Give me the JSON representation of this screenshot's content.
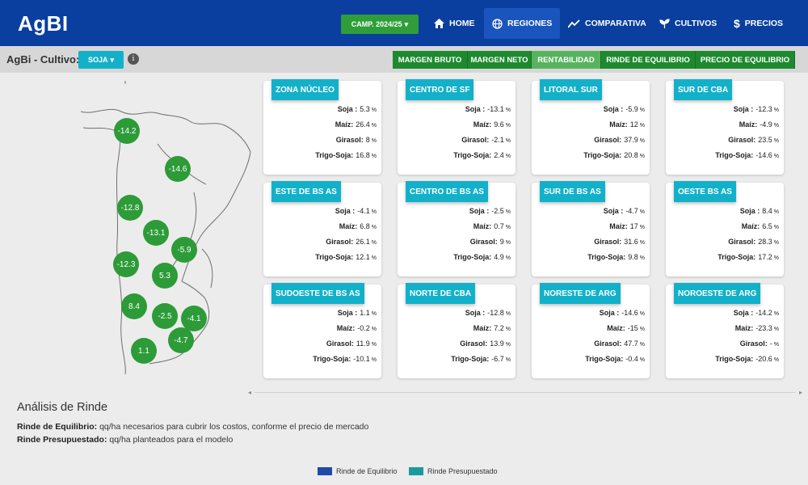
{
  "app": {
    "logo": "AgBI"
  },
  "campaign": {
    "label": "CAMP. 2024/25"
  },
  "nav": [
    {
      "label": "HOME",
      "icon": "home-icon"
    },
    {
      "label": "REGIONES",
      "icon": "globe-icon",
      "active": true
    },
    {
      "label": "COMPARATIVA",
      "icon": "chart-line-icon"
    },
    {
      "label": "CULTIVOS",
      "icon": "sprout-icon"
    },
    {
      "label": "PRECIOS",
      "icon": "dollar-icon"
    }
  ],
  "page": {
    "label": "AgBi - Cultivo:",
    "crop_selected": "SOJA",
    "info_symbol": "i"
  },
  "metric_tabs": [
    {
      "label": "MARGEN BRUTO"
    },
    {
      "label": "MARGEN NETO"
    },
    {
      "label": "RENTABILIDAD",
      "active": true
    },
    {
      "label": "RINDE DE EQUILIBRIO"
    },
    {
      "label": "PRECIO DE EQUILIBRIO"
    }
  ],
  "map": {
    "values": [
      "-14.2",
      "-14.6",
      "-12.8",
      "-13.1",
      "-5.9",
      "-12.3",
      "5.3",
      "8.4",
      "-2.5",
      "-4.1",
      "-4.7",
      "1.1"
    ],
    "bubble_color": "#2d9b38"
  },
  "unit": "%",
  "crops": [
    "Soja :",
    "Maíz:",
    "Girasol:",
    "Trigo-Soja:"
  ],
  "regions": [
    {
      "name": "ZONA NÚCLEO",
      "values": [
        "5.3",
        "26.4",
        "8",
        "16.8"
      ]
    },
    {
      "name": "CENTRO DE SF",
      "values": [
        "-13.1",
        "9.6",
        "-2.1",
        "2.4"
      ]
    },
    {
      "name": "LITORAL SUR",
      "values": [
        "-5.9",
        "12",
        "37.9",
        "20.8"
      ]
    },
    {
      "name": "SUR DE CBA",
      "values": [
        "-12.3",
        "-4.9",
        "23.5",
        "-14.6"
      ]
    },
    {
      "name": "ESTE DE BS AS",
      "values": [
        "-4.1",
        "6.8",
        "26.1",
        "12.1"
      ]
    },
    {
      "name": "CENTRO DE BS AS",
      "values": [
        "-2.5",
        "0.7",
        "9",
        "4.9"
      ]
    },
    {
      "name": "SUR DE BS AS",
      "values": [
        "-4.7",
        "17",
        "31.6",
        "9.8"
      ]
    },
    {
      "name": "OESTE BS AS",
      "values": [
        "8.4",
        "6.5",
        "28.3",
        "17.2"
      ]
    },
    {
      "name": "SUDOESTE DE BS AS",
      "values": [
        "1.1",
        "-0.2",
        "11.9",
        "-10.1"
      ]
    },
    {
      "name": "NORTE DE CBA",
      "values": [
        "-12.8",
        "7.2",
        "13.9",
        "-6.7"
      ]
    },
    {
      "name": "NORESTE DE ARG",
      "values": [
        "-14.6",
        "-15",
        "47.7",
        "-0.4"
      ]
    },
    {
      "name": "NOROESTE DE ARG",
      "values": [
        "-14.2",
        "-23.3",
        "-",
        "-20.6"
      ]
    }
  ],
  "analysis": {
    "title": "Análisis de Rinde",
    "eq_term": "Rinde de Equilibrio:",
    "eq_desc": " qq/ha necesarios para cubrir los costos, conforme el precio de mercado",
    "pres_term": "Rinde Presupuestado:",
    "pres_desc": " qq/ha planteados para el modelo"
  },
  "legend": [
    {
      "label": "Rinde de Equilibrio",
      "color": "#1f4aa8"
    },
    {
      "label": "Rinde Presupuestado",
      "color": "#1a9a9f"
    }
  ],
  "colors": {
    "nav": "#0a3fa0",
    "accent_cyan": "#13b1c9",
    "green": "#2f9e3a"
  }
}
